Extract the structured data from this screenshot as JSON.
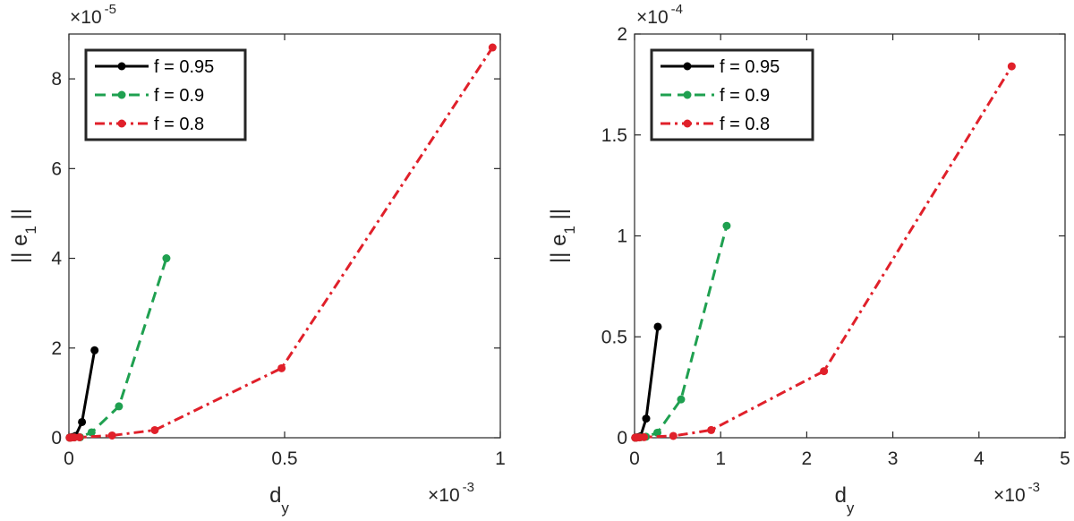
{
  "chart_data": [
    {
      "type": "line",
      "xlabel_main": "d",
      "xlabel_sub": "y",
      "ylabel_main": "|| e",
      "ylabel_sub": "1",
      "ylabel_tail": " ||",
      "xlim": [
        0,
        0.001
      ],
      "ylim": [
        0,
        9e-05
      ],
      "xticks": [
        0,
        0.0005,
        0.001
      ],
      "xtick_labels": [
        "0",
        "0.5",
        "1"
      ],
      "yticks": [
        0,
        2e-05,
        4e-05,
        6e-05,
        8e-05
      ],
      "ytick_labels": [
        "0",
        "2",
        "4",
        "6",
        "8"
      ],
      "x_multiplier_base": "×10",
      "x_multiplier_exp": "-3",
      "y_multiplier_base": "×10",
      "y_multiplier_exp": "-5",
      "legend_position": "top-left",
      "grid": false,
      "series": [
        {
          "name": "f = 0.95",
          "color": "#000000",
          "dash": "solid",
          "points": [
            [
              1.8e-06,
              3e-08
            ],
            [
              3.5e-06,
              6e-08
            ],
            [
              7.5e-06,
              1.5e-07
            ],
            [
              1.52e-05,
              4e-07
            ],
            [
              3.03e-05,
              3.5e-06
            ],
            [
              5.95e-05,
              1.95e-05
            ]
          ]
        },
        {
          "name": "f = 0.9",
          "color": "#1fa050",
          "dash": "dashed",
          "points": [
            [
              1.7e-06,
              2e-08
            ],
            [
              3.4e-06,
              4e-08
            ],
            [
              1.25e-05,
              8e-08
            ],
            [
              2.6e-05,
              1e-07
            ],
            [
              5.25e-05,
              1.2e-06
            ],
            [
              0.000116,
              7e-06
            ],
            [
              0.000226,
              4e-05
            ]
          ]
        },
        {
          "name": "f = 0.8",
          "color": "#e0202a",
          "dash": "dashdot",
          "points": [
            [
              1.6e-06,
              2e-08
            ],
            [
              3.2e-06,
              4e-08
            ],
            [
              6.2e-06,
              6e-08
            ],
            [
              1.23e-05,
              8e-08
            ],
            [
              2.45e-05,
              1e-07
            ],
            [
              0.0001,
              5e-07
            ],
            [
              0.000199,
              1.7e-06
            ],
            [
              0.000493,
              1.55e-05
            ],
            [
              0.000982,
              8.7e-05
            ]
          ]
        }
      ]
    },
    {
      "type": "line",
      "xlabel_main": "d",
      "xlabel_sub": "y",
      "ylabel_main": "|| e",
      "ylabel_sub": "1",
      "ylabel_tail": " ||",
      "xlim": [
        0,
        0.005
      ],
      "ylim": [
        0,
        0.0002
      ],
      "xticks": [
        0,
        0.001,
        0.002,
        0.003,
        0.004,
        0.005
      ],
      "xtick_labels": [
        "0",
        "1",
        "2",
        "3",
        "4",
        "5"
      ],
      "yticks": [
        0,
        5e-05,
        0.0001,
        0.00015,
        0.0002
      ],
      "ytick_labels": [
        "0",
        "0.5",
        "1",
        "1.5",
        "2"
      ],
      "x_multiplier_base": "×10",
      "x_multiplier_exp": "-3",
      "y_multiplier_base": "×10",
      "y_multiplier_exp": "-4",
      "legend_position": "top-left",
      "grid": false,
      "series": [
        {
          "name": "f = 0.95",
          "color": "#000000",
          "dash": "solid",
          "points": [
            [
              9e-06,
              5e-08
            ],
            [
              1.8e-05,
              1e-07
            ],
            [
              3.5e-05,
              2e-07
            ],
            [
              7e-05,
              7e-07
            ],
            [
              0.000135,
              9.5e-06
            ],
            [
              0.00027,
              5.5e-05
            ]
          ]
        },
        {
          "name": "f = 0.9",
          "color": "#1fa050",
          "dash": "dashed",
          "points": [
            [
              8e-06,
              4e-08
            ],
            [
              1.6e-05,
              8e-08
            ],
            [
              6.6e-05,
              2e-07
            ],
            [
              0.000133,
              5e-07
            ],
            [
              0.000265,
              2.5e-06
            ],
            [
              0.00054,
              1.9e-05
            ],
            [
              0.00107,
              0.000105
            ]
          ]
        },
        {
          "name": "f = 0.8",
          "color": "#e0202a",
          "dash": "dashdot",
          "points": [
            [
              7e-06,
              3e-08
            ],
            [
              1.4e-05,
              6e-08
            ],
            [
              2.8e-05,
              1e-07
            ],
            [
              5.6e-05,
              1.5e-07
            ],
            [
              0.00011,
              3e-07
            ],
            [
              0.00045,
              9e-07
            ],
            [
              0.00089,
              3.8e-06
            ],
            [
              0.0022,
              3.3e-05
            ],
            [
              0.00438,
              0.000184
            ]
          ]
        }
      ]
    }
  ]
}
